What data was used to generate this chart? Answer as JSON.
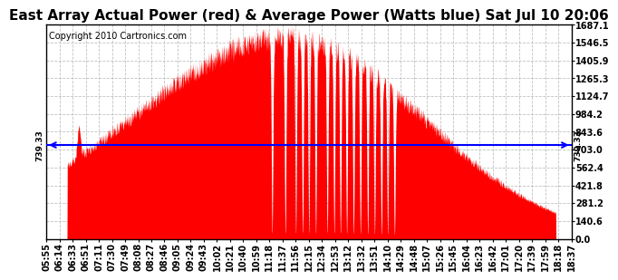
{
  "title": "East Array Actual Power (red) & Average Power (Watts blue) Sat Jul 10 20:06",
  "copyright": "Copyright 2010 Cartronics.com",
  "average_power": 739.33,
  "yticks": [
    0.0,
    140.6,
    281.2,
    421.8,
    562.4,
    703.0,
    843.6,
    984.2,
    1124.7,
    1265.3,
    1405.9,
    1546.5,
    1687.1
  ],
  "ylim": [
    0,
    1687.1
  ],
  "x_labels": [
    "05:55",
    "06:14",
    "06:33",
    "06:51",
    "07:11",
    "07:30",
    "07:49",
    "08:08",
    "08:27",
    "08:46",
    "09:05",
    "09:24",
    "09:43",
    "10:02",
    "10:21",
    "10:40",
    "10:59",
    "11:18",
    "11:37",
    "11:56",
    "12:15",
    "12:34",
    "12:53",
    "13:12",
    "13:32",
    "13:51",
    "14:10",
    "14:29",
    "14:48",
    "15:07",
    "15:26",
    "15:45",
    "16:04",
    "16:23",
    "16:42",
    "17:01",
    "17:20",
    "17:39",
    "17:59",
    "18:18",
    "18:37"
  ],
  "background_color": "#ffffff",
  "fill_color": "red",
  "avg_line_color": "blue",
  "grid_color": "#bbbbbb",
  "title_fontsize": 11,
  "copyright_fontsize": 7,
  "tick_fontsize": 7
}
